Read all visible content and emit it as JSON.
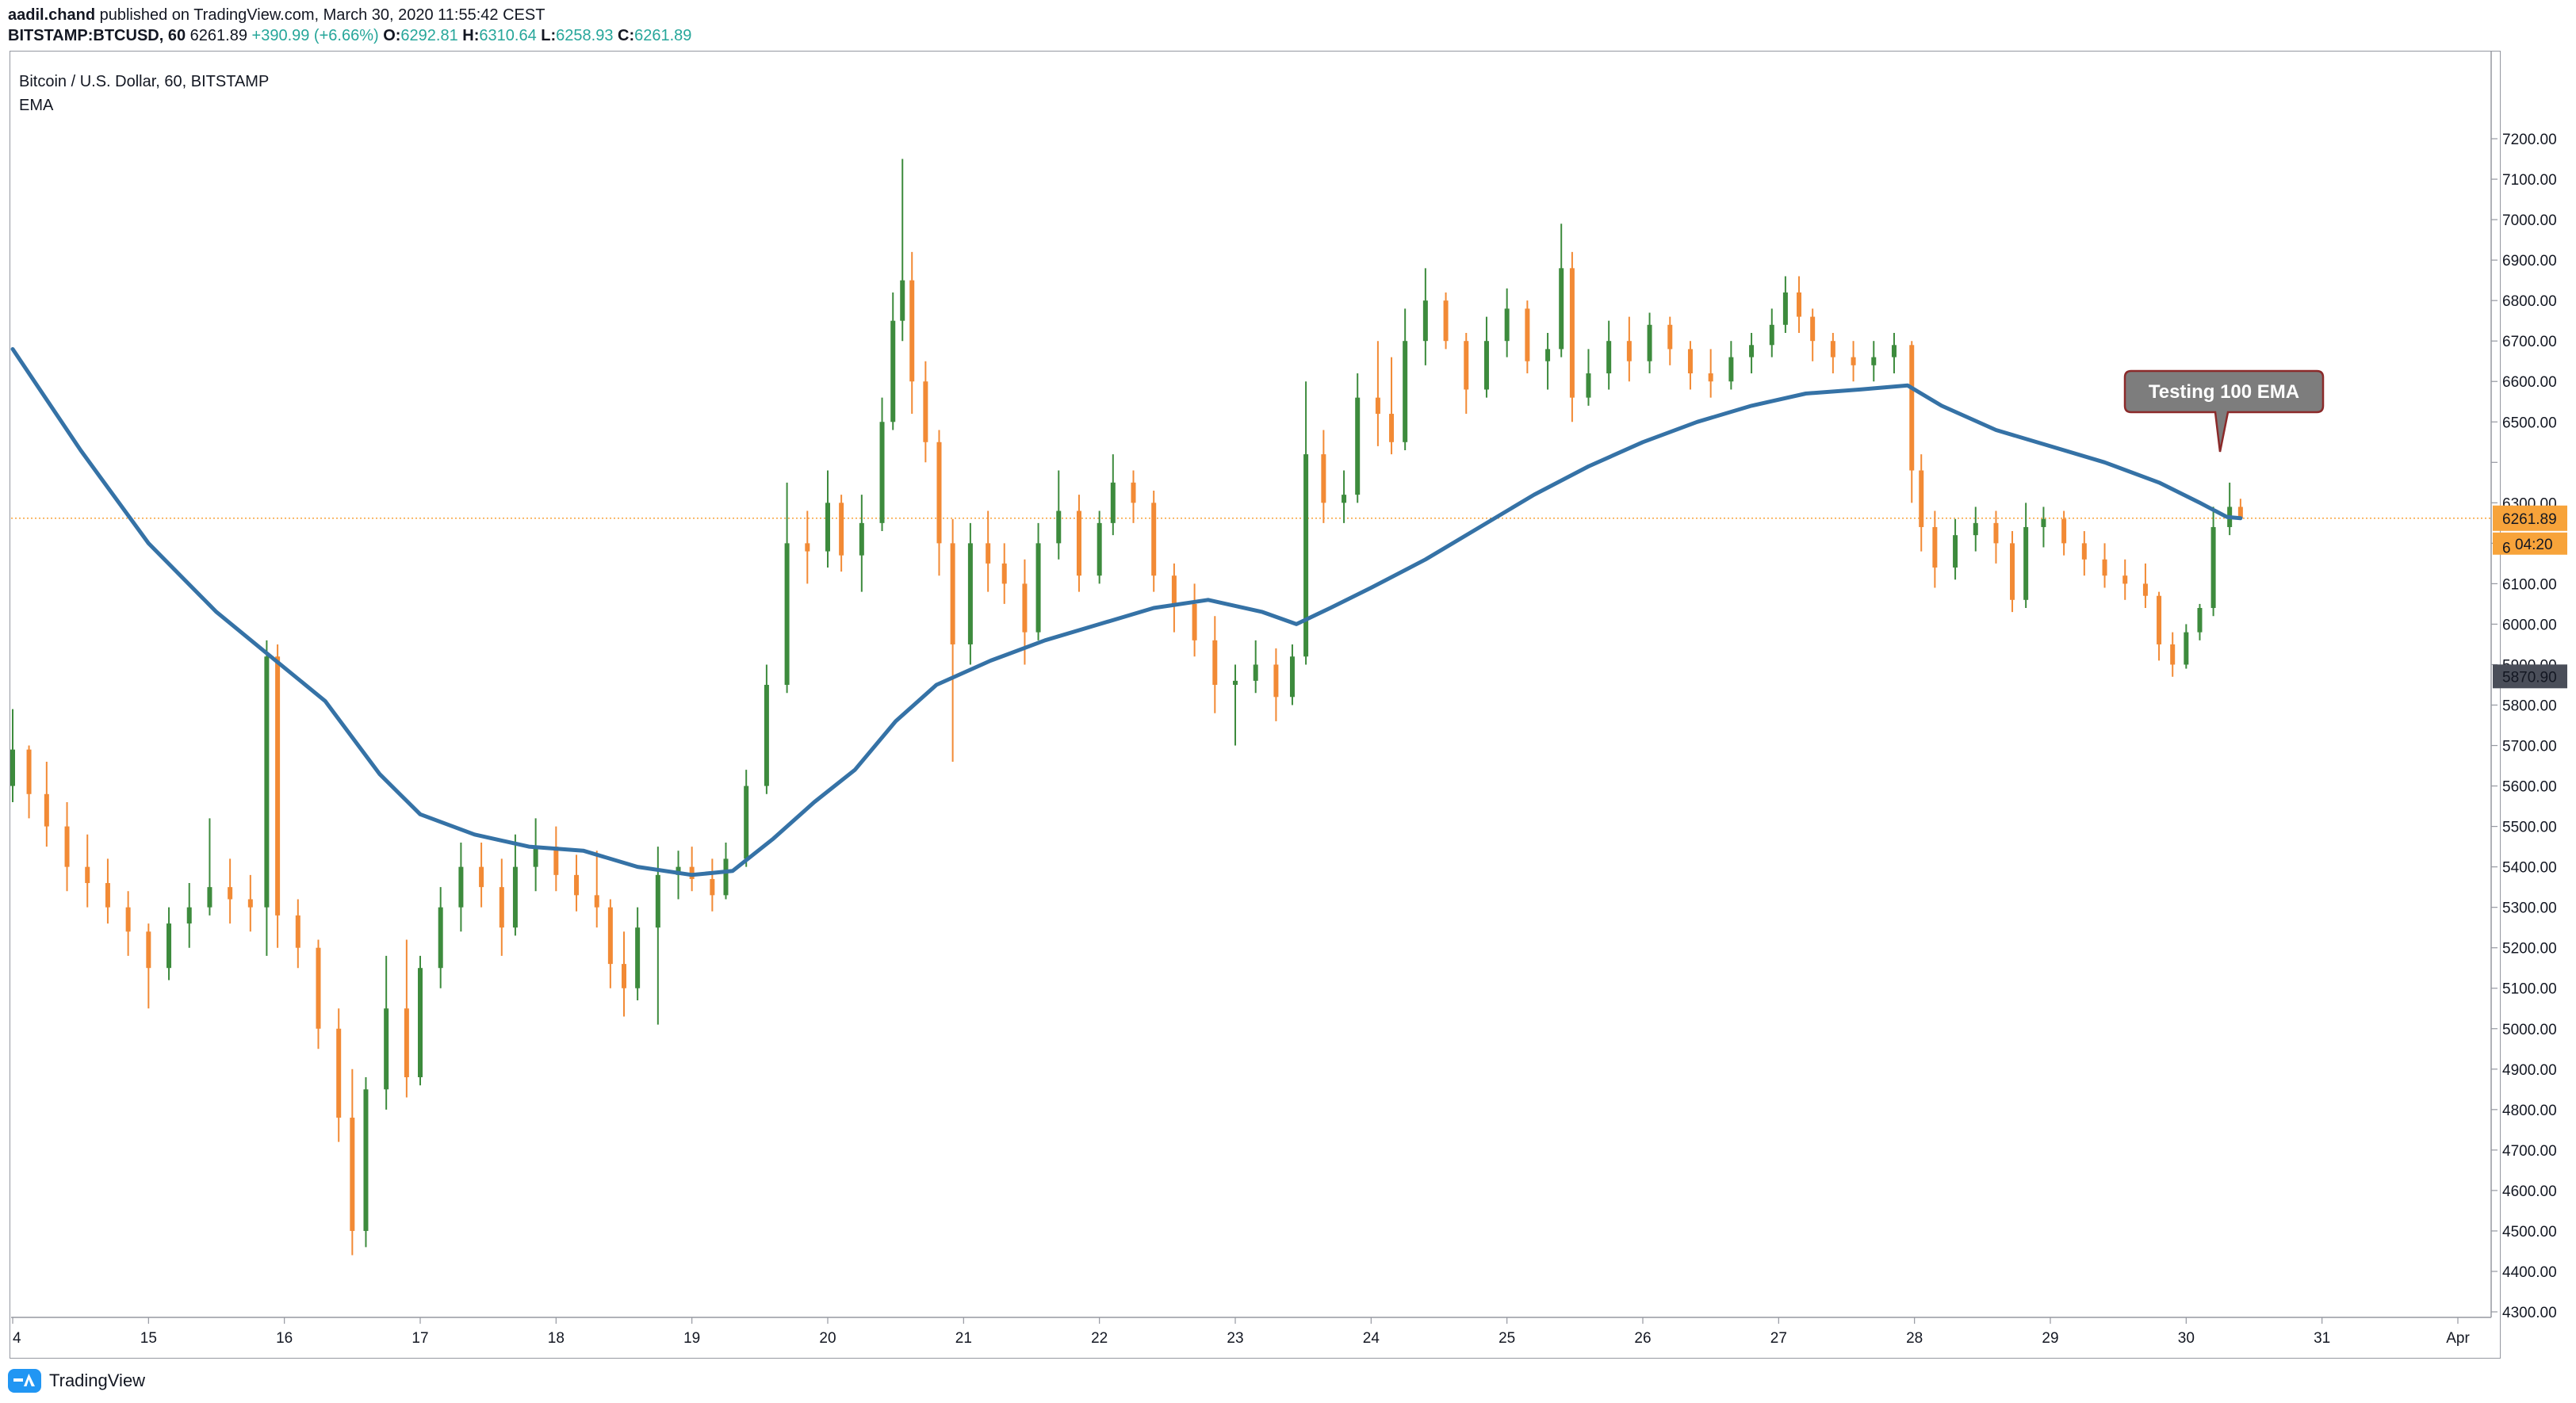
{
  "header": {
    "author": "aadil.chand",
    "published": " published on TradingView.com, March 30, 2020 11:55:42 CEST",
    "symbol": "BITSTAMP:BTCUSD, 60",
    "last": "6261.89",
    "change": "+390.99 (+6.66%)",
    "o_label": "O:",
    "o_val": "6292.81",
    "h_label": "H:",
    "h_val": "6310.64",
    "l_label": "L:",
    "l_val": "6258.93",
    "c_label": "C:",
    "c_val": "6261.89"
  },
  "legend": {
    "title": "Bitcoin / U.S. Dollar, 60, BITSTAMP",
    "indicator": "EMA"
  },
  "footer": {
    "brand": "TradingView",
    "logo_icon": "tradingview-logo-icon"
  },
  "colors": {
    "up": "#3d8b3d",
    "down": "#f28a35",
    "ema": "#3572a6",
    "price_line": "#f7a33a",
    "price_tag": "#f7a33a",
    "low_tag": "#4a4e59",
    "callout_fill": "#7d7d7d",
    "callout_border": "#8b2a2a"
  },
  "chart_data": {
    "type": "line",
    "annotation": "Testing 100 EMA",
    "ylim": [
      4300,
      7300
    ],
    "y_ticks": [
      4300,
      4400,
      4500,
      4600,
      4700,
      4800,
      4900,
      5000,
      5100,
      5200,
      5300,
      5400,
      5500,
      5600,
      5700,
      5800,
      5900,
      6000,
      6100,
      6200,
      6300,
      6400,
      6500,
      6600,
      6700,
      6800,
      6900,
      7000,
      7100,
      7200
    ],
    "y_tick_labels": [
      "4300.00",
      "4400.00",
      "4500.00",
      "4600.00",
      "4700.00",
      "4800.00",
      "4900.00",
      "5000.00",
      "5100.00",
      "5200.00",
      "5300.00",
      "5400.00",
      "5500.00",
      "5600.00",
      "5700.00",
      "5800.00",
      "5900.00",
      "6000.00",
      "6100.00",
      "6200.00",
      "6300.00",
      "",
      "6500.00",
      "6600.00",
      "6700.00",
      "6800.00",
      "6900.00",
      "7000.00",
      "7100.00",
      "7200.00"
    ],
    "x_ticks": [
      {
        "t": 0,
        "label": "4"
      },
      {
        "t": 1,
        "label": "15"
      },
      {
        "t": 2,
        "label": "16"
      },
      {
        "t": 3,
        "label": "17"
      },
      {
        "t": 4,
        "label": "18"
      },
      {
        "t": 5,
        "label": "19"
      },
      {
        "t": 6,
        "label": "20"
      },
      {
        "t": 7,
        "label": "21"
      },
      {
        "t": 8,
        "label": "22"
      },
      {
        "t": 9,
        "label": "23"
      },
      {
        "t": 10,
        "label": "24"
      },
      {
        "t": 11,
        "label": "25"
      },
      {
        "t": 12,
        "label": "26"
      },
      {
        "t": 13,
        "label": "27"
      },
      {
        "t": 14,
        "label": "28"
      },
      {
        "t": 15,
        "label": "29"
      },
      {
        "t": 16,
        "label": "30"
      },
      {
        "t": 17,
        "label": "31"
      },
      {
        "t": 18,
        "label": "Apr"
      }
    ],
    "price_tags": [
      {
        "name": "last-price",
        "value": 6261.89,
        "label": "6261.89",
        "sub": "04:20"
      },
      {
        "name": "low-marker",
        "value": 5870.9,
        "label": "5870.90"
      },
      {
        "name": "partial-tick",
        "value": 6200,
        "label": "6"
      }
    ],
    "candles": [
      [
        0.0,
        5600,
        5790,
        5560,
        5690
      ],
      [
        0.12,
        5690,
        5700,
        5520,
        5580
      ],
      [
        0.25,
        5580,
        5660,
        5450,
        5500
      ],
      [
        0.4,
        5500,
        5560,
        5340,
        5400
      ],
      [
        0.55,
        5400,
        5480,
        5300,
        5360
      ],
      [
        0.7,
        5360,
        5420,
        5260,
        5300
      ],
      [
        0.85,
        5300,
        5340,
        5180,
        5240
      ],
      [
        1.0,
        5240,
        5260,
        5050,
        5150
      ],
      [
        1.15,
        5150,
        5300,
        5120,
        5260
      ],
      [
        1.3,
        5260,
        5360,
        5200,
        5300
      ],
      [
        1.45,
        5300,
        5520,
        5280,
        5350
      ],
      [
        1.6,
        5350,
        5420,
        5260,
        5320
      ],
      [
        1.75,
        5320,
        5380,
        5240,
        5300
      ],
      [
        1.87,
        5300,
        5960,
        5180,
        5920
      ],
      [
        1.95,
        5920,
        5950,
        5200,
        5280
      ],
      [
        2.1,
        5280,
        5320,
        5150,
        5200
      ],
      [
        2.25,
        5200,
        5220,
        4950,
        5000
      ],
      [
        2.4,
        5000,
        5050,
        4720,
        4780
      ],
      [
        2.5,
        4780,
        4900,
        4440,
        4500
      ],
      [
        2.6,
        4500,
        4880,
        4460,
        4850
      ],
      [
        2.75,
        4850,
        5180,
        4800,
        5050
      ],
      [
        2.9,
        5050,
        5220,
        4830,
        4880
      ],
      [
        3.0,
        4880,
        5180,
        4860,
        5150
      ],
      [
        3.15,
        5150,
        5350,
        5100,
        5300
      ],
      [
        3.3,
        5300,
        5460,
        5240,
        5400
      ],
      [
        3.45,
        5400,
        5460,
        5300,
        5350
      ],
      [
        3.6,
        5350,
        5420,
        5180,
        5250
      ],
      [
        3.7,
        5250,
        5480,
        5230,
        5400
      ],
      [
        3.85,
        5400,
        5520,
        5340,
        5450
      ],
      [
        4.0,
        5450,
        5500,
        5340,
        5380
      ],
      [
        4.15,
        5380,
        5430,
        5290,
        5330
      ],
      [
        4.3,
        5330,
        5440,
        5250,
        5300
      ],
      [
        4.4,
        5300,
        5320,
        5100,
        5160
      ],
      [
        4.5,
        5160,
        5240,
        5030,
        5100
      ],
      [
        4.6,
        5100,
        5300,
        5070,
        5250
      ],
      [
        4.75,
        5250,
        5450,
        5010,
        5380
      ],
      [
        4.9,
        5380,
        5440,
        5320,
        5400
      ],
      [
        5.0,
        5400,
        5450,
        5340,
        5370
      ],
      [
        5.15,
        5370,
        5420,
        5290,
        5330
      ],
      [
        5.25,
        5330,
        5460,
        5320,
        5420
      ],
      [
        5.4,
        5420,
        5640,
        5400,
        5600
      ],
      [
        5.55,
        5600,
        5900,
        5580,
        5850
      ],
      [
        5.7,
        5850,
        6350,
        5830,
        6200
      ],
      [
        5.85,
        6200,
        6280,
        6100,
        6180
      ],
      [
        6.0,
        6180,
        6380,
        6140,
        6300
      ],
      [
        6.1,
        6300,
        6320,
        6130,
        6170
      ],
      [
        6.25,
        6170,
        6320,
        6080,
        6250
      ],
      [
        6.4,
        6250,
        6560,
        6230,
        6500
      ],
      [
        6.48,
        6500,
        6820,
        6480,
        6750
      ],
      [
        6.55,
        6750,
        7150,
        6700,
        6850
      ],
      [
        6.62,
        6850,
        6920,
        6520,
        6600
      ],
      [
        6.72,
        6600,
        6650,
        6400,
        6450
      ],
      [
        6.82,
        6450,
        6480,
        6120,
        6200
      ],
      [
        6.92,
        6200,
        6260,
        5660,
        5950
      ],
      [
        7.05,
        5950,
        6250,
        5900,
        6200
      ],
      [
        7.18,
        6200,
        6280,
        6080,
        6150
      ],
      [
        7.3,
        6150,
        6200,
        6050,
        6100
      ],
      [
        7.45,
        6100,
        6160,
        5900,
        5980
      ],
      [
        7.55,
        5980,
        6250,
        5960,
        6200
      ],
      [
        7.7,
        6200,
        6380,
        6160,
        6280
      ],
      [
        7.85,
        6280,
        6320,
        6080,
        6120
      ],
      [
        8.0,
        6120,
        6280,
        6100,
        6250
      ],
      [
        8.1,
        6250,
        6420,
        6220,
        6350
      ],
      [
        8.25,
        6350,
        6380,
        6250,
        6300
      ],
      [
        8.4,
        6300,
        6330,
        6080,
        6120
      ],
      [
        8.55,
        6120,
        6150,
        5980,
        6050
      ],
      [
        8.7,
        6050,
        6100,
        5920,
        5960
      ],
      [
        8.85,
        5960,
        6020,
        5780,
        5850
      ],
      [
        9.0,
        5850,
        5900,
        5700,
        5860
      ],
      [
        9.15,
        5860,
        5960,
        5830,
        5900
      ],
      [
        9.3,
        5900,
        5940,
        5760,
        5820
      ],
      [
        9.42,
        5820,
        5950,
        5800,
        5920
      ],
      [
        9.52,
        5920,
        6600,
        5900,
        6420
      ],
      [
        9.65,
        6420,
        6480,
        6250,
        6300
      ],
      [
        9.8,
        6300,
        6380,
        6250,
        6320
      ],
      [
        9.9,
        6320,
        6620,
        6300,
        6560
      ],
      [
        10.05,
        6560,
        6700,
        6440,
        6520
      ],
      [
        10.15,
        6520,
        6660,
        6420,
        6450
      ],
      [
        10.25,
        6450,
        6780,
        6430,
        6700
      ],
      [
        10.4,
        6700,
        6880,
        6640,
        6800
      ],
      [
        10.55,
        6800,
        6820,
        6680,
        6700
      ],
      [
        10.7,
        6700,
        6720,
        6520,
        6580
      ],
      [
        10.85,
        6580,
        6760,
        6560,
        6700
      ],
      [
        11.0,
        6700,
        6830,
        6660,
        6780
      ],
      [
        11.15,
        6780,
        6800,
        6620,
        6650
      ],
      [
        11.3,
        6650,
        6720,
        6580,
        6680
      ],
      [
        11.4,
        6680,
        6990,
        6660,
        6880
      ],
      [
        11.48,
        6880,
        6920,
        6500,
        6560
      ],
      [
        11.6,
        6560,
        6680,
        6540,
        6620
      ],
      [
        11.75,
        6620,
        6750,
        6580,
        6700
      ],
      [
        11.9,
        6700,
        6760,
        6600,
        6650
      ],
      [
        12.05,
        6650,
        6770,
        6620,
        6740
      ],
      [
        12.2,
        6740,
        6760,
        6640,
        6680
      ],
      [
        12.35,
        6680,
        6700,
        6580,
        6620
      ],
      [
        12.5,
        6620,
        6680,
        6560,
        6600
      ],
      [
        12.65,
        6600,
        6700,
        6580,
        6660
      ],
      [
        12.8,
        6660,
        6720,
        6620,
        6690
      ],
      [
        12.95,
        6690,
        6780,
        6660,
        6740
      ],
      [
        13.05,
        6740,
        6860,
        6720,
        6820
      ],
      [
        13.15,
        6820,
        6860,
        6720,
        6760
      ],
      [
        13.25,
        6760,
        6780,
        6650,
        6700
      ],
      [
        13.4,
        6700,
        6720,
        6620,
        6660
      ],
      [
        13.55,
        6660,
        6700,
        6600,
        6640
      ],
      [
        13.7,
        6640,
        6700,
        6600,
        6660
      ],
      [
        13.85,
        6660,
        6720,
        6620,
        6690
      ],
      [
        13.98,
        6690,
        6700,
        6300,
        6380
      ],
      [
        14.05,
        6380,
        6420,
        6180,
        6240
      ],
      [
        14.15,
        6240,
        6280,
        6090,
        6140
      ],
      [
        14.3,
        6140,
        6260,
        6110,
        6220
      ],
      [
        14.45,
        6220,
        6290,
        6180,
        6250
      ],
      [
        14.6,
        6250,
        6280,
        6150,
        6200
      ],
      [
        14.72,
        6200,
        6230,
        6030,
        6060
      ],
      [
        14.82,
        6060,
        6300,
        6040,
        6240
      ],
      [
        14.95,
        6240,
        6290,
        6190,
        6260
      ],
      [
        15.1,
        6260,
        6280,
        6170,
        6200
      ],
      [
        15.25,
        6200,
        6230,
        6120,
        6160
      ],
      [
        15.4,
        6160,
        6200,
        6090,
        6120
      ],
      [
        15.55,
        6120,
        6160,
        6060,
        6100
      ],
      [
        15.7,
        6100,
        6150,
        6040,
        6070
      ],
      [
        15.8,
        6070,
        6080,
        5910,
        5950
      ],
      [
        15.9,
        5950,
        5980,
        5870,
        5900
      ],
      [
        16.0,
        5900,
        6000,
        5890,
        5980
      ],
      [
        16.1,
        5980,
        6050,
        5960,
        6040
      ],
      [
        16.2,
        6040,
        6290,
        6020,
        6240
      ],
      [
        16.32,
        6240,
        6350,
        6220,
        6290
      ],
      [
        16.4,
        6290,
        6310,
        6258,
        6262
      ]
    ],
    "ema_100": [
      [
        0.0,
        6680
      ],
      [
        0.5,
        6430
      ],
      [
        1.0,
        6200
      ],
      [
        1.5,
        6030
      ],
      [
        1.9,
        5920
      ],
      [
        2.3,
        5810
      ],
      [
        2.7,
        5630
      ],
      [
        3.0,
        5530
      ],
      [
        3.4,
        5480
      ],
      [
        3.8,
        5450
      ],
      [
        4.2,
        5440
      ],
      [
        4.6,
        5400
      ],
      [
        5.0,
        5380
      ],
      [
        5.3,
        5390
      ],
      [
        5.6,
        5470
      ],
      [
        5.9,
        5560
      ],
      [
        6.2,
        5640
      ],
      [
        6.5,
        5760
      ],
      [
        6.8,
        5850
      ],
      [
        7.2,
        5910
      ],
      [
        7.6,
        5960
      ],
      [
        8.0,
        6000
      ],
      [
        8.4,
        6040
      ],
      [
        8.8,
        6060
      ],
      [
        9.2,
        6030
      ],
      [
        9.45,
        6000
      ],
      [
        9.7,
        6040
      ],
      [
        10.0,
        6090
      ],
      [
        10.4,
        6160
      ],
      [
        10.8,
        6240
      ],
      [
        11.2,
        6320
      ],
      [
        11.6,
        6390
      ],
      [
        12.0,
        6450
      ],
      [
        12.4,
        6500
      ],
      [
        12.8,
        6540
      ],
      [
        13.2,
        6570
      ],
      [
        13.6,
        6580
      ],
      [
        13.95,
        6590
      ],
      [
        14.2,
        6540
      ],
      [
        14.6,
        6480
      ],
      [
        15.0,
        6440
      ],
      [
        15.4,
        6400
      ],
      [
        15.8,
        6350
      ],
      [
        16.1,
        6300
      ],
      [
        16.3,
        6265
      ],
      [
        16.4,
        6262
      ]
    ]
  }
}
